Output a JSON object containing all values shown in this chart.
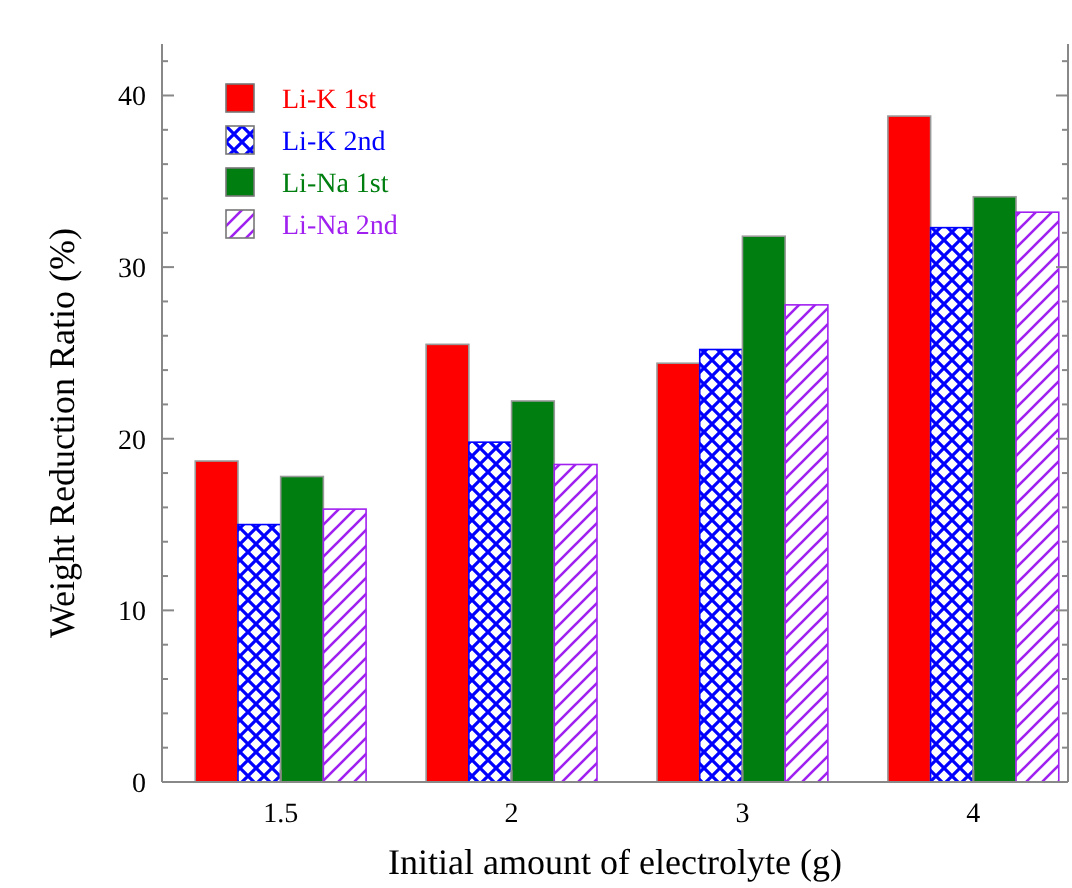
{
  "chart_data": {
    "type": "bar",
    "xlabel": "Initial amount of electrolyte (g)",
    "ylabel": "Weight Reduction Ratio (%)",
    "categories": [
      "1.5",
      "2",
      "3",
      "4"
    ],
    "series": [
      {
        "name": "Li-K 1st",
        "color": "#ff0000",
        "values": [
          18.7,
          25.5,
          24.4,
          38.8
        ]
      },
      {
        "name": "Li-K 2nd",
        "color": "#0000ff",
        "values": [
          15.0,
          19.8,
          25.2,
          32.3
        ]
      },
      {
        "name": "Li-Na 1st",
        "color": "#007f10",
        "values": [
          17.8,
          22.2,
          31.8,
          34.1
        ]
      },
      {
        "name": "Li-Na 2nd",
        "color": "#a020f0",
        "values": [
          15.9,
          18.5,
          27.8,
          33.2
        ]
      }
    ],
    "ylim": [
      0,
      43
    ],
    "yticks": [
      0,
      {
        "value": 2,
        "label": null
      },
      {
        "value": 4,
        "label": null
      },
      {
        "value": 6,
        "label": null
      },
      {
        "value": 8,
        "label": null
      },
      10,
      {
        "value": 12,
        "label": null
      },
      {
        "value": 14,
        "label": null
      },
      {
        "value": 16,
        "label": null
      },
      {
        "value": 18,
        "label": null
      },
      20,
      {
        "value": 22,
        "label": null
      },
      {
        "value": 24,
        "label": null
      },
      {
        "value": 26,
        "label": null
      },
      {
        "value": 28,
        "label": null
      },
      30,
      {
        "value": 32,
        "label": null
      },
      {
        "value": 34,
        "label": null
      },
      {
        "value": 36,
        "label": null
      },
      {
        "value": 38,
        "label": null
      },
      40,
      {
        "value": 42,
        "label": null
      }
    ],
    "legend": "top left",
    "grid": false
  }
}
